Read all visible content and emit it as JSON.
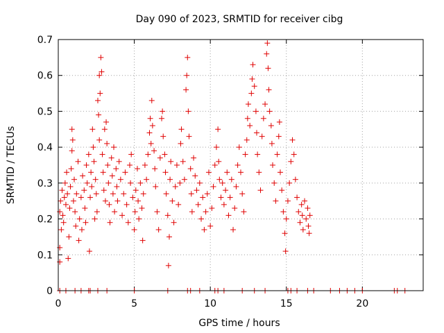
{
  "chart_data": {
    "type": "scatter",
    "title": "Day 090 of 2023, SRMTID for receiver cibg",
    "xlabel": "GPS time / hours",
    "ylabel": "SRMTID / TECUs",
    "xlim": [
      0,
      24
    ],
    "ylim": [
      0,
      0.7
    ],
    "xticks": [
      0,
      5,
      10,
      15,
      20
    ],
    "yticks": [
      0,
      0.1,
      0.2,
      0.3,
      0.4,
      0.5,
      0.6,
      0.7
    ],
    "xtick_labels": [
      "0",
      "5",
      "10",
      "15",
      "20"
    ],
    "ytick_labels": [
      "0",
      "0.1",
      "0.2",
      "0.3",
      "0.4",
      "0.5",
      "0.6",
      "0.7"
    ],
    "grid": true,
    "marker": "+",
    "marker_color": "#e00000",
    "series": [
      {
        "name": "SRMTID",
        "points": [
          [
            0.1,
            0.22
          ],
          [
            0.1,
            0.08
          ],
          [
            0.1,
            0.12
          ],
          [
            0.15,
            0.25
          ],
          [
            0.2,
            0.17
          ],
          [
            0.25,
            0.28
          ],
          [
            0.3,
            0.21
          ],
          [
            0.35,
            0.19
          ],
          [
            0.4,
            0.26
          ],
          [
            0.45,
            0.3
          ],
          [
            0.5,
            0.24
          ],
          [
            0.55,
            0.33
          ],
          [
            0.6,
            0.27
          ],
          [
            0.65,
            0.09
          ],
          [
            0.7,
            0.15
          ],
          [
            0.75,
            0.23
          ],
          [
            0.8,
            0.29
          ],
          [
            0.85,
            0.34
          ],
          [
            0.9,
            0.45
          ],
          [
            0.9,
            0.39
          ],
          [
            0.95,
            0.42
          ],
          [
            1.0,
            0.25
          ],
          [
            1.05,
            0.31
          ],
          [
            1.1,
            0.22
          ],
          [
            1.15,
            0.18
          ],
          [
            1.2,
            0.27
          ],
          [
            1.3,
            0.36
          ],
          [
            1.35,
            0.14
          ],
          [
            1.4,
            0.2
          ],
          [
            1.5,
            0.26
          ],
          [
            1.55,
            0.17
          ],
          [
            1.6,
            0.32
          ],
          [
            1.7,
            0.28
          ],
          [
            1.75,
            0.23
          ],
          [
            1.8,
            0.19
          ],
          [
            1.85,
            0.35
          ],
          [
            1.9,
            0.3
          ],
          [
            2.0,
            0.38
          ],
          [
            2.05,
            0.11
          ],
          [
            2.1,
            0.26
          ],
          [
            2.15,
            0.33
          ],
          [
            2.2,
            0.29
          ],
          [
            2.25,
            0.45
          ],
          [
            2.3,
            0.4
          ],
          [
            2.35,
            0.36
          ],
          [
            2.4,
            0.2
          ],
          [
            2.45,
            0.31
          ],
          [
            2.5,
            0.27
          ],
          [
            2.55,
            0.22
          ],
          [
            2.6,
            0.53
          ],
          [
            2.65,
            0.49
          ],
          [
            2.7,
            0.42
          ],
          [
            2.7,
            0.6
          ],
          [
            2.75,
            0.55
          ],
          [
            2.8,
            0.65
          ],
          [
            2.85,
            0.61
          ],
          [
            2.9,
            0.38
          ],
          [
            2.95,
            0.33
          ],
          [
            3.0,
            0.28
          ],
          [
            3.05,
            0.45
          ],
          [
            3.1,
            0.25
          ],
          [
            3.15,
            0.47
          ],
          [
            3.2,
            0.41
          ],
          [
            3.25,
            0.35
          ],
          [
            3.3,
            0.3
          ],
          [
            3.35,
            0.24
          ],
          [
            3.4,
            0.19
          ],
          [
            3.5,
            0.37
          ],
          [
            3.55,
            0.32
          ],
          [
            3.6,
            0.27
          ],
          [
            3.65,
            0.4
          ],
          [
            3.7,
            0.22
          ],
          [
            3.8,
            0.34
          ],
          [
            3.85,
            0.29
          ],
          [
            3.9,
            0.25
          ],
          [
            4.0,
            0.36
          ],
          [
            4.1,
            0.31
          ],
          [
            4.2,
            0.21
          ],
          [
            4.3,
            0.27
          ],
          [
            4.4,
            0.33
          ],
          [
            4.5,
            0.24
          ],
          [
            4.6,
            0.19
          ],
          [
            4.7,
            0.35
          ],
          [
            4.75,
            0.3
          ],
          [
            4.8,
            0.38
          ],
          [
            4.9,
            0.26
          ],
          [
            5.0,
            0.17
          ],
          [
            5.05,
            0.22
          ],
          [
            5.1,
            0.28
          ],
          [
            5.2,
            0.34
          ],
          [
            5.25,
            0.25
          ],
          [
            5.3,
            0.2
          ],
          [
            5.4,
            0.3
          ],
          [
            5.5,
            0.23
          ],
          [
            5.55,
            0.14
          ],
          [
            5.6,
            0.27
          ],
          [
            5.7,
            0.35
          ],
          [
            5.8,
            0.31
          ],
          [
            5.9,
            0.38
          ],
          [
            6.0,
            0.44
          ],
          [
            6.05,
            0.48
          ],
          [
            6.1,
            0.41
          ],
          [
            6.15,
            0.53
          ],
          [
            6.2,
            0.46
          ],
          [
            6.3,
            0.39
          ],
          [
            6.35,
            0.34
          ],
          [
            6.4,
            0.29
          ],
          [
            6.5,
            0.22
          ],
          [
            6.6,
            0.17
          ],
          [
            6.7,
            0.37
          ],
          [
            6.8,
            0.48
          ],
          [
            6.85,
            0.5
          ],
          [
            6.9,
            0.43
          ],
          [
            7.0,
            0.38
          ],
          [
            7.05,
            0.33
          ],
          [
            7.1,
            0.27
          ],
          [
            7.2,
            0.21
          ],
          [
            7.25,
            0.07
          ],
          [
            7.3,
            0.15
          ],
          [
            7.35,
            0.31
          ],
          [
            7.4,
            0.36
          ],
          [
            7.5,
            0.25
          ],
          [
            7.6,
            0.19
          ],
          [
            7.7,
            0.29
          ],
          [
            7.8,
            0.35
          ],
          [
            7.9,
            0.24
          ],
          [
            8.0,
            0.3
          ],
          [
            8.05,
            0.41
          ],
          [
            8.1,
            0.45
          ],
          [
            8.2,
            0.36
          ],
          [
            8.3,
            0.31
          ],
          [
            8.4,
            0.56
          ],
          [
            8.45,
            0.6
          ],
          [
            8.5,
            0.65
          ],
          [
            8.55,
            0.5
          ],
          [
            8.6,
            0.43
          ],
          [
            8.7,
            0.34
          ],
          [
            8.75,
            0.27
          ],
          [
            8.8,
            0.22
          ],
          [
            8.9,
            0.37
          ],
          [
            9.0,
            0.32
          ],
          [
            9.1,
            0.28
          ],
          [
            9.2,
            0.24
          ],
          [
            9.3,
            0.3
          ],
          [
            9.4,
            0.2
          ],
          [
            9.5,
            0.26
          ],
          [
            9.6,
            0.17
          ],
          [
            9.7,
            0.22
          ],
          [
            9.8,
            0.27
          ],
          [
            9.9,
            0.33
          ],
          [
            10.0,
            0.18
          ],
          [
            10.1,
            0.23
          ],
          [
            10.2,
            0.29
          ],
          [
            10.3,
            0.35
          ],
          [
            10.4,
            0.4
          ],
          [
            10.5,
            0.45
          ],
          [
            10.55,
            0.36
          ],
          [
            10.6,
            0.31
          ],
          [
            10.7,
            0.26
          ],
          [
            10.8,
            0.3
          ],
          [
            10.9,
            0.24
          ],
          [
            11.0,
            0.28
          ],
          [
            11.1,
            0.33
          ],
          [
            11.2,
            0.21
          ],
          [
            11.3,
            0.26
          ],
          [
            11.4,
            0.31
          ],
          [
            11.5,
            0.17
          ],
          [
            11.6,
            0.23
          ],
          [
            11.7,
            0.29
          ],
          [
            11.8,
            0.35
          ],
          [
            11.9,
            0.4
          ],
          [
            12.0,
            0.33
          ],
          [
            12.1,
            0.27
          ],
          [
            12.2,
            0.22
          ],
          [
            12.3,
            0.38
          ],
          [
            12.4,
            0.42
          ],
          [
            12.45,
            0.48
          ],
          [
            12.5,
            0.52
          ],
          [
            12.6,
            0.46
          ],
          [
            12.7,
            0.55
          ],
          [
            12.75,
            0.59
          ],
          [
            12.8,
            0.63
          ],
          [
            12.9,
            0.57
          ],
          [
            13.0,
            0.5
          ],
          [
            13.05,
            0.44
          ],
          [
            13.1,
            0.38
          ],
          [
            13.2,
            0.33
          ],
          [
            13.3,
            0.28
          ],
          [
            13.4,
            0.43
          ],
          [
            13.5,
            0.48
          ],
          [
            13.6,
            0.52
          ],
          [
            13.7,
            0.66
          ],
          [
            13.75,
            0.69
          ],
          [
            13.8,
            0.62
          ],
          [
            13.85,
            0.56
          ],
          [
            13.9,
            0.5
          ],
          [
            14.0,
            0.46
          ],
          [
            14.05,
            0.41
          ],
          [
            14.1,
            0.35
          ],
          [
            14.2,
            0.3
          ],
          [
            14.3,
            0.25
          ],
          [
            14.4,
            0.38
          ],
          [
            14.5,
            0.43
          ],
          [
            14.55,
            0.47
          ],
          [
            14.6,
            0.33
          ],
          [
            14.7,
            0.28
          ],
          [
            14.8,
            0.22
          ],
          [
            14.9,
            0.16
          ],
          [
            14.95,
            0.11
          ],
          [
            15.0,
            0.2
          ],
          [
            15.1,
            0.25
          ],
          [
            15.2,
            0.3
          ],
          [
            15.3,
            0.36
          ],
          [
            15.4,
            0.42
          ],
          [
            15.5,
            0.38
          ],
          [
            15.6,
            0.31
          ],
          [
            15.7,
            0.26
          ],
          [
            15.8,
            0.22
          ],
          [
            15.9,
            0.19
          ],
          [
            16.0,
            0.24
          ],
          [
            16.05,
            0.21
          ],
          [
            16.1,
            0.17
          ],
          [
            16.2,
            0.25
          ],
          [
            16.3,
            0.2
          ],
          [
            16.4,
            0.23
          ],
          [
            16.45,
            0.18
          ],
          [
            16.5,
            0.16
          ],
          [
            16.55,
            0.21
          ],
          [
            0.1,
            0
          ],
          [
            0.5,
            0
          ],
          [
            1.1,
            0
          ],
          [
            1.5,
            0
          ],
          [
            2.0,
            0
          ],
          [
            2.1,
            0
          ],
          [
            2.6,
            0
          ],
          [
            3.2,
            0
          ],
          [
            5.0,
            0
          ],
          [
            7.2,
            0
          ],
          [
            8.5,
            0
          ],
          [
            8.7,
            0
          ],
          [
            9.3,
            0
          ],
          [
            10.3,
            0
          ],
          [
            10.5,
            0
          ],
          [
            10.9,
            0
          ],
          [
            12.1,
            0
          ],
          [
            12.9,
            0
          ],
          [
            13.6,
            0
          ],
          [
            15.1,
            0
          ],
          [
            15.3,
            0
          ],
          [
            15.7,
            0
          ],
          [
            16.4,
            0
          ],
          [
            16.8,
            0
          ],
          [
            17.9,
            0
          ],
          [
            18.5,
            0
          ],
          [
            19.0,
            0
          ],
          [
            19.5,
            0
          ],
          [
            20.0,
            0
          ],
          [
            22.1,
            0
          ],
          [
            22.3,
            0
          ],
          [
            22.8,
            0
          ]
        ]
      }
    ]
  }
}
